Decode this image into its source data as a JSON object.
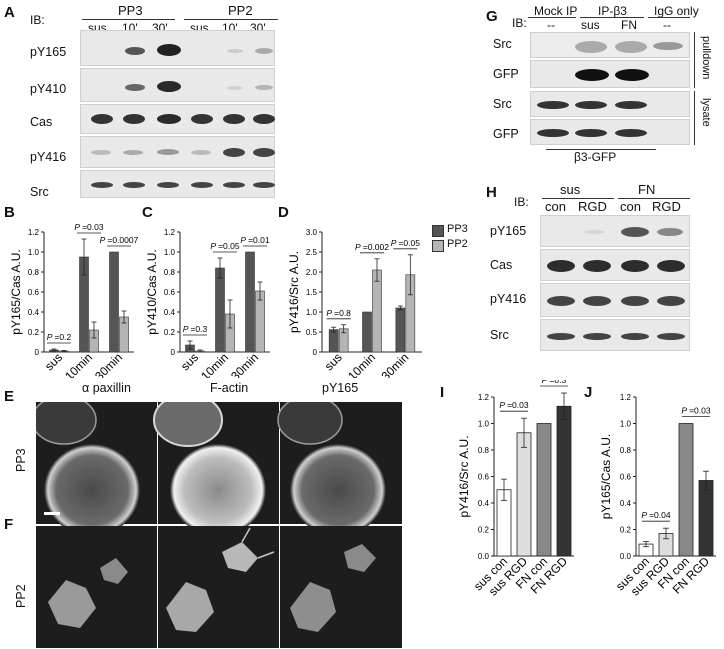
{
  "panel_letters": {
    "A": "A",
    "B": "B",
    "C": "C",
    "D": "D",
    "E": "E",
    "F": "F",
    "G": "G",
    "H": "H",
    "I": "I",
    "J": "J"
  },
  "panelA": {
    "ib": "IB:",
    "groups": [
      "PP3",
      "PP2"
    ],
    "lanes": [
      "sus",
      "10'",
      "30'",
      "sus",
      "10'",
      "30'"
    ],
    "rows": [
      "pY165",
      "pY410",
      "Cas",
      "pY416",
      "Src"
    ]
  },
  "panelG": {
    "ib": "IB:",
    "headers": [
      "Mock IP",
      "IP-β3",
      "IgG only"
    ],
    "sub": [
      "--",
      "sus",
      "FN",
      "--"
    ],
    "rows": [
      "Src",
      "GFP",
      "Src",
      "GFP"
    ],
    "side": [
      "pulldown",
      "lysate"
    ],
    "bottom": "β3-GFP"
  },
  "panelH": {
    "ib": "IB:",
    "groups": [
      "sus",
      "FN"
    ],
    "lanes": [
      "con",
      "RGD",
      "con",
      "RGD"
    ],
    "rows": [
      "pY165",
      "Cas",
      "pY416",
      "Src"
    ]
  },
  "panelE": {
    "cols": [
      "α paxillin",
      "F-actin",
      "pY165"
    ],
    "row": "PP3"
  },
  "panelF": {
    "row": "PP2"
  },
  "legend": [
    {
      "name": "PP3",
      "color": "#555555"
    },
    {
      "name": "PP2",
      "color": "#b5b5b5"
    }
  ],
  "chart_data": [
    {
      "id": "B",
      "type": "bar",
      "ylabel": "pY165/Cas  A.U.",
      "categories": [
        "sus",
        "10min",
        "30min"
      ],
      "ylim": [
        0,
        1.2
      ],
      "yticks": [
        "0",
        "0.2",
        "0.4",
        "0.6",
        "0.8",
        "1.0",
        "1.2"
      ],
      "series": [
        {
          "name": "PP3",
          "values": [
            0.02,
            0.95,
            1.0
          ],
          "err": [
            0.01,
            0.18,
            0.0
          ]
        },
        {
          "name": "PP2",
          "values": [
            0.01,
            0.22,
            0.35
          ],
          "err": [
            0.005,
            0.08,
            0.06
          ]
        }
      ],
      "annotations": [
        "P =0.2",
        "P =0.03",
        "P =0.0007"
      ]
    },
    {
      "id": "C",
      "type": "bar",
      "ylabel": "pY410/Cas  A.U.",
      "categories": [
        "sus",
        "10min",
        "30min"
      ],
      "ylim": [
        0,
        1.2
      ],
      "yticks": [
        "0",
        "0.2",
        "0.4",
        "0.6",
        "0.8",
        "1.0",
        "1.2"
      ],
      "series": [
        {
          "name": "PP3",
          "values": [
            0.07,
            0.84,
            1.0
          ],
          "err": [
            0.04,
            0.1,
            0.0
          ]
        },
        {
          "name": "PP2",
          "values": [
            0.01,
            0.38,
            0.61
          ],
          "err": [
            0.01,
            0.14,
            0.09
          ]
        }
      ],
      "annotations": [
        "P =0.3",
        "P =0.05",
        "P =0.01"
      ]
    },
    {
      "id": "D",
      "type": "bar",
      "ylabel": "pY416/Src  A.U.",
      "categories": [
        "sus",
        "10min",
        "30min"
      ],
      "ylim": [
        0,
        3.0
      ],
      "yticks": [
        "0",
        "0.5",
        "1.0",
        "1.5",
        "2.0",
        "2.5",
        "3.0"
      ],
      "series": [
        {
          "name": "PP3",
          "values": [
            0.56,
            1.0,
            1.1
          ],
          "err": [
            0.06,
            0.0,
            0.05
          ]
        },
        {
          "name": "PP2",
          "values": [
            0.58,
            2.05,
            1.93
          ],
          "err": [
            0.1,
            0.28,
            0.5
          ]
        }
      ],
      "annotations": [
        "P =0.8",
        "P =0.002",
        "P =0.05"
      ]
    },
    {
      "id": "I",
      "type": "bar",
      "ylabel": "pY416/Src  A.U.",
      "categories": [
        "sus con",
        "sus RGD",
        "FN con",
        "FN RGD"
      ],
      "ylim": [
        0,
        1.2
      ],
      "yticks": [
        "0.0",
        "0.2",
        "0.4",
        "0.6",
        "0.8",
        "1.0",
        "1.2"
      ],
      "values": [
        0.5,
        0.93,
        1.0,
        1.13
      ],
      "err": [
        0.08,
        0.11,
        0.0,
        0.1
      ],
      "colors": [
        "#ffffff",
        "#dddddd",
        "#888888",
        "#333333"
      ],
      "annotations": [
        "P =0.03",
        "P =0.3"
      ]
    },
    {
      "id": "J",
      "type": "bar",
      "ylabel": "pY165/Cas  A.U.",
      "categories": [
        "sus con",
        "sus RGD",
        "FN con",
        "FN RGD"
      ],
      "ylim": [
        0,
        1.2
      ],
      "yticks": [
        "0.0",
        "0.2",
        "0.4",
        "0.6",
        "0.8",
        "1.0",
        "1.2"
      ],
      "values": [
        0.09,
        0.17,
        1.0,
        0.57
      ],
      "err": [
        0.02,
        0.04,
        0.0,
        0.07
      ],
      "colors": [
        "#ffffff",
        "#dddddd",
        "#888888",
        "#333333"
      ],
      "annotations": [
        "P =0.04",
        "P =0.03"
      ]
    }
  ]
}
